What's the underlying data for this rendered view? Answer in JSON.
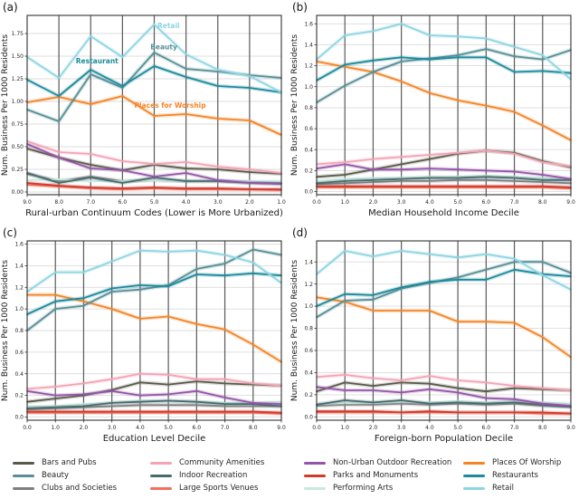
{
  "colors": {
    "Bars and Pubs": "#585a49",
    "Beauty": "#568f95",
    "Clubs and Societies": "#7f7f7f",
    "Community Amenities": "#f4a3b5",
    "Indoor Recreation": "#476b6d",
    "Large Sports Venues": "#f2705c",
    "Non-Urban Outdoor Recreation": "#9455a8",
    "Parks and Monuments": "#d03a2d",
    "Performing Arts": "#c7e9e0",
    "Places Of Worship": "#f58426",
    "Restaurants": "#1b8a9c",
    "Retail": "#8ed5e2"
  },
  "legend": {
    "items": [
      {
        "label": "Bars and Pubs",
        "color": "#585a49"
      },
      {
        "label": "Beauty",
        "color": "#568f95"
      },
      {
        "label": "Clubs and Societies",
        "color": "#7f7f7f"
      },
      {
        "label": "Community Amenities",
        "color": "#f4a3b5"
      },
      {
        "label": "Indoor Recreation",
        "color": "#476b6d"
      },
      {
        "label": "Large Sports Venues",
        "color": "#f2705c"
      },
      {
        "label": "Non-Urban Outdoor Recreation",
        "color": "#9455a8"
      },
      {
        "label": "Parks and Monuments",
        "color": "#d03a2d"
      },
      {
        "label": "Performing Arts",
        "color": "#c7e9e0"
      },
      {
        "label": "Places Of Worship",
        "color": "#f58426"
      },
      {
        "label": "Restaurants",
        "color": "#1b8a9c"
      },
      {
        "label": "Retail",
        "color": "#8ed5e2"
      }
    ]
  },
  "chart_data": [
    {
      "type": "line",
      "panel_label": "(a)",
      "xlabel": "Rural-urban Continuum Codes (Lower is More Urbanized)",
      "ylabel": "Num. Business Per 1000 Residents",
      "x": [
        9,
        8,
        7,
        6,
        5,
        4,
        3,
        2,
        1
      ],
      "xtick_labels": [
        "9.0",
        "8.0",
        "7.0",
        "6.0",
        "5.0",
        "4.0",
        "3.0",
        "2.0",
        "1.0"
      ],
      "xlim": [
        9,
        1
      ],
      "ytick_values": [
        0,
        0.25,
        0.5,
        0.75,
        1.0,
        1.25,
        1.5,
        1.75
      ],
      "ytick_labels": [
        "0.00",
        "0.25",
        "0.50",
        "0.75",
        "1.00",
        "1.25",
        "1.50",
        "1.75"
      ],
      "ylim": [
        -0.03,
        1.95
      ],
      "grid": true,
      "series": [
        {
          "name": "Clubs and Societies",
          "values": [
            0.2,
            0.12,
            0.17,
            0.12,
            0.13,
            0.12,
            0.12,
            0.11,
            0.1
          ]
        },
        {
          "name": "Performing Arts",
          "values": [
            0.13,
            0.14,
            0.12,
            0.12,
            0.13,
            0.12,
            0.12,
            0.12,
            0.12
          ]
        },
        {
          "name": "Large Sports Venues",
          "values": [
            0.08,
            0.06,
            0.04,
            0.03,
            0.04,
            0.03,
            0.03,
            0.03,
            0.02
          ]
        },
        {
          "name": "Parks and Monuments",
          "values": [
            0.1,
            0.07,
            0.05,
            0.04,
            0.05,
            0.04,
            0.04,
            0.03,
            0.03
          ]
        },
        {
          "name": "Indoor Recreation",
          "values": [
            0.21,
            0.1,
            0.16,
            0.1,
            0.16,
            0.12,
            0.12,
            0.1,
            0.09
          ]
        },
        {
          "name": "Bars and Pubs",
          "values": [
            0.48,
            0.38,
            0.3,
            0.24,
            0.3,
            0.26,
            0.25,
            0.22,
            0.2
          ]
        },
        {
          "name": "Non-Urban Outdoor Recreation",
          "values": [
            0.53,
            0.38,
            0.26,
            0.24,
            0.17,
            0.21,
            0.13,
            0.1,
            0.09
          ]
        },
        {
          "name": "Community Amenities",
          "values": [
            0.56,
            0.44,
            0.42,
            0.34,
            0.31,
            0.33,
            0.28,
            0.25,
            0.21
          ]
        },
        {
          "name": "Places Of Worship",
          "values": [
            0.99,
            1.05,
            0.97,
            1.06,
            0.84,
            0.86,
            0.81,
            0.79,
            0.63
          ]
        },
        {
          "name": "Beauty",
          "values": [
            0.91,
            0.78,
            1.3,
            1.15,
            1.54,
            1.36,
            1.33,
            1.29,
            1.26
          ]
        },
        {
          "name": "Restaurants",
          "values": [
            1.24,
            1.06,
            1.35,
            1.17,
            1.39,
            1.27,
            1.17,
            1.15,
            1.1
          ]
        },
        {
          "name": "Retail",
          "values": [
            1.49,
            1.26,
            1.72,
            1.49,
            1.85,
            1.52,
            1.35,
            1.28,
            1.1
          ]
        }
      ],
      "annotations": [
        {
          "text": "Retail",
          "x": 4.55,
          "y": 1.81,
          "color": "#8ed5e2",
          "bold": true
        },
        {
          "text": "Beauty",
          "x": 4.7,
          "y": 1.575,
          "color": "#568f95",
          "bold": true
        },
        {
          "text": "Restaurant",
          "x": 6.8,
          "y": 1.42,
          "color": "#1b8a9c",
          "bold": true
        },
        {
          "text": "Places for Worship",
          "x": 4.5,
          "y": 0.93,
          "color": "#f58426",
          "bold": true
        }
      ]
    },
    {
      "type": "line",
      "panel_label": "(b)",
      "xlabel": "Median Household Income Decile",
      "ylabel": "Num. Business Per 1000 Residents",
      "x": [
        0,
        1,
        2,
        3,
        4,
        5,
        6,
        7,
        8,
        9
      ],
      "xtick_labels": [
        "0.0",
        "1.0",
        "2.0",
        "3.0",
        "4.0",
        "5.0",
        "6.0",
        "7.0",
        "8.0",
        "9.0"
      ],
      "xlim": [
        0,
        9
      ],
      "ytick_values": [
        0,
        0.2,
        0.4,
        0.6,
        0.8,
        1.0,
        1.2,
        1.4,
        1.6
      ],
      "ytick_labels": [
        "0.0",
        "0.2",
        "0.4",
        "0.6",
        "0.8",
        "1.0",
        "1.2",
        "1.4",
        "1.6"
      ],
      "ylim": [
        -0.03,
        1.68
      ],
      "grid": true,
      "series": [
        {
          "name": "Clubs and Societies",
          "values": [
            0.07,
            0.08,
            0.09,
            0.1,
            0.1,
            0.11,
            0.11,
            0.1,
            0.09,
            0.08
          ]
        },
        {
          "name": "Performing Arts",
          "values": [
            0.1,
            0.12,
            0.13,
            0.13,
            0.14,
            0.14,
            0.15,
            0.14,
            0.13,
            0.12
          ]
        },
        {
          "name": "Large Sports Venues",
          "values": [
            0.04,
            0.04,
            0.04,
            0.04,
            0.04,
            0.04,
            0.04,
            0.04,
            0.04,
            0.03
          ]
        },
        {
          "name": "Parks and Monuments",
          "values": [
            0.05,
            0.05,
            0.05,
            0.05,
            0.05,
            0.05,
            0.05,
            0.05,
            0.05,
            0.04
          ]
        },
        {
          "name": "Indoor Recreation",
          "values": [
            0.08,
            0.1,
            0.11,
            0.12,
            0.13,
            0.13,
            0.14,
            0.13,
            0.11,
            0.11
          ]
        },
        {
          "name": "Bars and Pubs",
          "values": [
            0.14,
            0.16,
            0.21,
            0.26,
            0.31,
            0.36,
            0.39,
            0.37,
            0.29,
            0.23
          ]
        },
        {
          "name": "Non-Urban Outdoor Recreation",
          "values": [
            0.22,
            0.26,
            0.21,
            0.21,
            0.22,
            0.21,
            0.2,
            0.19,
            0.16,
            0.12
          ]
        },
        {
          "name": "Community Amenities",
          "values": [
            0.26,
            0.28,
            0.31,
            0.33,
            0.35,
            0.37,
            0.39,
            0.36,
            0.28,
            0.24
          ]
        },
        {
          "name": "Places Of Worship",
          "values": [
            1.24,
            1.19,
            1.14,
            1.05,
            0.94,
            0.87,
            0.82,
            0.76,
            0.63,
            0.49
          ]
        },
        {
          "name": "Beauty",
          "values": [
            0.85,
            1.01,
            1.14,
            1.24,
            1.27,
            1.3,
            1.36,
            1.29,
            1.26,
            1.35
          ]
        },
        {
          "name": "Restaurants",
          "values": [
            1.06,
            1.21,
            1.25,
            1.28,
            1.26,
            1.28,
            1.28,
            1.14,
            1.15,
            1.13
          ]
        },
        {
          "name": "Retail",
          "values": [
            1.26,
            1.49,
            1.53,
            1.6,
            1.49,
            1.48,
            1.46,
            1.38,
            1.3,
            1.07
          ]
        }
      ],
      "annotations": []
    },
    {
      "type": "line",
      "panel_label": "(c)",
      "xlabel": "Education Level Decile",
      "ylabel": "Num. Business Per 1000 Residents",
      "x": [
        0,
        1,
        2,
        3,
        4,
        5,
        6,
        7,
        8,
        9
      ],
      "xtick_labels": [
        "0.0",
        "1.0",
        "2.0",
        "3.0",
        "4.0",
        "5.0",
        "6.0",
        "7.0",
        "8.0",
        "9.0"
      ],
      "xlim": [
        0,
        9
      ],
      "ytick_values": [
        0,
        0.2,
        0.4,
        0.6,
        0.8,
        1.0,
        1.2,
        1.4,
        1.6
      ],
      "ytick_labels": [
        "0.0",
        "0.2",
        "0.4",
        "0.6",
        "0.8",
        "1.0",
        "1.2",
        "1.4",
        "1.6"
      ],
      "ylim": [
        -0.03,
        1.63
      ],
      "grid": true,
      "series": [
        {
          "name": "Clubs and Societies",
          "values": [
            0.07,
            0.08,
            0.09,
            0.1,
            0.11,
            0.11,
            0.11,
            0.1,
            0.1,
            0.1
          ]
        },
        {
          "name": "Performing Arts",
          "values": [
            0.1,
            0.1,
            0.12,
            0.13,
            0.15,
            0.15,
            0.14,
            0.13,
            0.13,
            0.14
          ]
        },
        {
          "name": "Large Sports Venues",
          "values": [
            0.04,
            0.04,
            0.04,
            0.04,
            0.04,
            0.04,
            0.04,
            0.04,
            0.04,
            0.03
          ]
        },
        {
          "name": "Parks and Monuments",
          "values": [
            0.05,
            0.05,
            0.05,
            0.05,
            0.05,
            0.05,
            0.05,
            0.05,
            0.05,
            0.04
          ]
        },
        {
          "name": "Indoor Recreation",
          "values": [
            0.08,
            0.09,
            0.1,
            0.13,
            0.14,
            0.15,
            0.14,
            0.12,
            0.12,
            0.1
          ]
        },
        {
          "name": "Bars and Pubs",
          "values": [
            0.14,
            0.17,
            0.2,
            0.25,
            0.32,
            0.3,
            0.33,
            0.31,
            0.3,
            0.29
          ]
        },
        {
          "name": "Non-Urban Outdoor Recreation",
          "values": [
            0.24,
            0.2,
            0.21,
            0.24,
            0.2,
            0.21,
            0.24,
            0.18,
            0.13,
            0.12
          ]
        },
        {
          "name": "Community Amenities",
          "values": [
            0.26,
            0.28,
            0.31,
            0.35,
            0.4,
            0.39,
            0.35,
            0.35,
            0.31,
            0.29
          ]
        },
        {
          "name": "Places Of Worship",
          "values": [
            1.13,
            1.13,
            1.07,
            1.0,
            0.91,
            0.93,
            0.86,
            0.81,
            0.67,
            0.51
          ]
        },
        {
          "name": "Beauty",
          "values": [
            0.8,
            1.0,
            1.03,
            1.16,
            1.18,
            1.22,
            1.37,
            1.42,
            1.55,
            1.5
          ]
        },
        {
          "name": "Restaurants",
          "values": [
            0.95,
            1.07,
            1.1,
            1.19,
            1.22,
            1.21,
            1.32,
            1.31,
            1.33,
            1.31
          ]
        },
        {
          "name": "Retail",
          "values": [
            1.16,
            1.34,
            1.34,
            1.44,
            1.54,
            1.53,
            1.54,
            1.5,
            1.43,
            1.24
          ]
        }
      ],
      "annotations": []
    },
    {
      "type": "line",
      "panel_label": "(d)",
      "xlabel": "Foreign-born Population Decile",
      "ylabel": "Num. Business Per 1000 Residents",
      "x": [
        0,
        1,
        2,
        3,
        4,
        5,
        6,
        7,
        8,
        9
      ],
      "xtick_labels": [
        "0.0",
        "1.0",
        "2.0",
        "3.0",
        "4.0",
        "5.0",
        "6.0",
        "7.0",
        "8.0",
        "9.0"
      ],
      "xlim": [
        0,
        9
      ],
      "ytick_values": [
        0,
        0.2,
        0.4,
        0.6,
        0.8,
        1.0,
        1.2,
        1.4
      ],
      "ytick_labels": [
        "0.0",
        "0.2",
        "0.4",
        "0.6",
        "0.8",
        "1.0",
        "1.2",
        "1.4"
      ],
      "ylim": [
        -0.03,
        1.59
      ],
      "grid": true,
      "series": [
        {
          "name": "Clubs and Societies",
          "values": [
            0.1,
            0.11,
            0.11,
            0.12,
            0.11,
            0.12,
            0.11,
            0.12,
            0.1,
            0.09
          ]
        },
        {
          "name": "Performing Arts",
          "values": [
            0.12,
            0.13,
            0.13,
            0.14,
            0.13,
            0.14,
            0.13,
            0.14,
            0.13,
            0.12
          ]
        },
        {
          "name": "Large Sports Venues",
          "values": [
            0.04,
            0.04,
            0.04,
            0.04,
            0.04,
            0.04,
            0.04,
            0.04,
            0.03,
            0.03
          ]
        },
        {
          "name": "Parks and Monuments",
          "values": [
            0.05,
            0.05,
            0.05,
            0.04,
            0.05,
            0.04,
            0.04,
            0.04,
            0.04,
            0.03
          ]
        },
        {
          "name": "Indoor Recreation",
          "values": [
            0.11,
            0.15,
            0.13,
            0.15,
            0.12,
            0.13,
            0.12,
            0.13,
            0.11,
            0.09
          ]
        },
        {
          "name": "Bars and Pubs",
          "values": [
            0.23,
            0.31,
            0.28,
            0.31,
            0.3,
            0.26,
            0.23,
            0.26,
            0.25,
            0.24
          ]
        },
        {
          "name": "Non-Urban Outdoor Recreation",
          "values": [
            0.27,
            0.24,
            0.24,
            0.22,
            0.25,
            0.22,
            0.17,
            0.16,
            0.12,
            0.1
          ]
        },
        {
          "name": "Community Amenities",
          "values": [
            0.36,
            0.38,
            0.35,
            0.33,
            0.37,
            0.33,
            0.31,
            0.28,
            0.26,
            0.24
          ]
        },
        {
          "name": "Places Of Worship",
          "values": [
            1.08,
            1.04,
            0.96,
            0.96,
            0.96,
            0.86,
            0.86,
            0.85,
            0.72,
            0.54
          ]
        },
        {
          "name": "Beauty",
          "values": [
            0.9,
            1.05,
            1.06,
            1.16,
            1.21,
            1.26,
            1.33,
            1.4,
            1.4,
            1.3
          ]
        },
        {
          "name": "Restaurants",
          "values": [
            1.0,
            1.11,
            1.1,
            1.17,
            1.22,
            1.24,
            1.24,
            1.33,
            1.29,
            1.27
          ]
        },
        {
          "name": "Retail",
          "values": [
            1.29,
            1.5,
            1.45,
            1.5,
            1.47,
            1.44,
            1.47,
            1.43,
            1.28,
            1.15
          ]
        }
      ],
      "annotations": []
    }
  ]
}
